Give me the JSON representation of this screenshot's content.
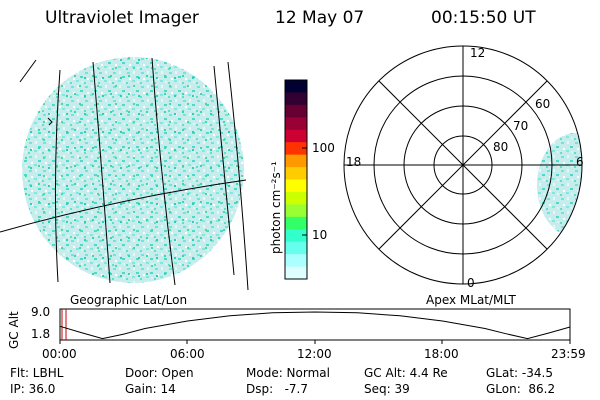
{
  "header": {
    "title": "Ultraviolet Imager",
    "date": "12 May 07",
    "time": "00:15:50 UT"
  },
  "left_panel": {
    "caption": "Geographic Lat/Lon"
  },
  "right_panel": {
    "caption": "Apex MLat/MLT",
    "mlt_labels": [
      "12",
      "18",
      "6",
      "0"
    ],
    "lat_labels": [
      "60",
      "70",
      "80"
    ]
  },
  "colorbar": {
    "unit": "photon cm⁻²s⁻¹",
    "ticks": [
      "100",
      "10"
    ],
    "colors": [
      "#000033",
      "#330033",
      "#660033",
      "#990033",
      "#cc0033",
      "#ff3300",
      "#ff9900",
      "#ffcc00",
      "#ffff00",
      "#ccff00",
      "#99ff33",
      "#33ff66",
      "#33ffcc",
      "#66ffee",
      "#aaffff",
      "#ddffff"
    ]
  },
  "altitude_plot": {
    "ylabel": "GC Alt",
    "yticks": [
      "9.0",
      "1.8"
    ],
    "xticks": [
      "00:00",
      "06:00",
      "12:00",
      "18:00",
      "23:59"
    ],
    "marker_color": "#cc0000"
  },
  "info": {
    "row1": {
      "flt": "Flt: LBHL",
      "door": "Door: Open",
      "mode": "Mode: Normal",
      "gcalt": "GC Alt: 4.4 Re",
      "glat": "GLat: -34.5"
    },
    "row2": {
      "ip": "IP: 36.0",
      "gain": "Gain: 14",
      "dsp": "Dsp:   -7.7",
      "seq": "Seq: 39",
      "glon": "GLon:  86.2"
    }
  },
  "chart_data": {
    "type": "line",
    "title": "",
    "xlabel": "",
    "ylabel": "GC Alt",
    "x_ticks": [
      "00:00",
      "06:00",
      "12:00",
      "18:00",
      "23:59"
    ],
    "ylim": [
      1.8,
      9.0
    ],
    "series": [
      {
        "x": [
          0,
          1,
          2,
          3,
          4,
          6,
          8,
          10,
          12,
          14,
          16,
          18,
          20,
          21,
          22,
          23,
          24
        ],
        "y": [
          5.2,
          3.5,
          1.9,
          3.1,
          4.6,
          6.6,
          8.0,
          8.8,
          9.0,
          8.8,
          8.0,
          6.6,
          4.6,
          3.2,
          1.9,
          3.4,
          5.0
        ]
      }
    ]
  }
}
